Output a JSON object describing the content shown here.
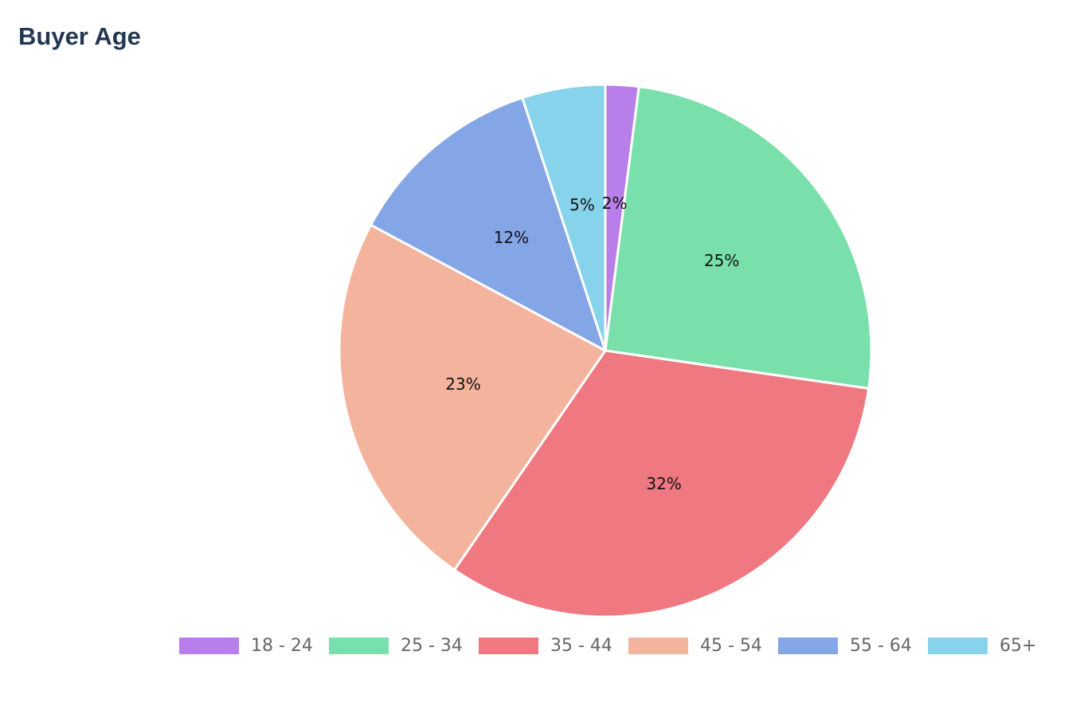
{
  "header": {
    "title": "Buyer Age"
  },
  "chart_data": {
    "type": "pie",
    "title": "Buyer Age",
    "categories": [
      "18 - 24",
      "25 - 34",
      "35 - 44",
      "45 - 54",
      "55 - 64",
      "65+"
    ],
    "values": [
      2,
      25,
      32,
      23,
      12,
      5
    ],
    "labels": [
      "2%",
      "25%",
      "32%",
      "23%",
      "12%",
      "5%"
    ],
    "colors": [
      "#b87eea",
      "#79e0ab",
      "#ef7881",
      "#f4b39d",
      "#84a5e6",
      "#86d3eb"
    ],
    "legend": "bottom",
    "start_angle": "top",
    "direction": "clockwise"
  }
}
